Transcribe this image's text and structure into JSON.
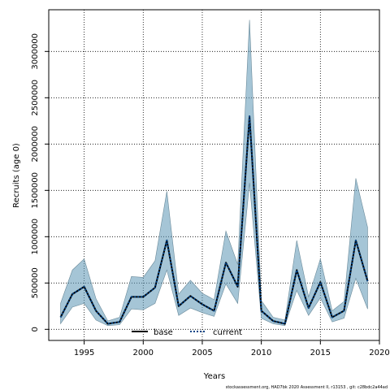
{
  "chart_data": {
    "type": "line",
    "title": "",
    "xlabel": "Years",
    "ylabel": "Recruits (age 0)",
    "xlim": [
      1992,
      2020
    ],
    "ylim": [
      -120000,
      3450000
    ],
    "grid": true,
    "x_ticks": [
      1995,
      2000,
      2005,
      2010,
      2015,
      2020
    ],
    "x_tick_labels": [
      "1995",
      "2000",
      "2005",
      "2010",
      "2015",
      "2020"
    ],
    "y_ticks": [
      0,
      500000,
      1000000,
      1500000,
      2000000,
      2500000,
      3000000
    ],
    "y_tick_labels": [
      "0",
      "500000",
      "1000000",
      "1500000",
      "2000000",
      "2500000",
      "3000000"
    ],
    "x": [
      1993,
      1994,
      1995,
      1996,
      1997,
      1998,
      1999,
      2000,
      2001,
      2002,
      2003,
      2004,
      2005,
      2006,
      2007,
      2008,
      2009,
      2010,
      2011,
      2012,
      2013,
      2014,
      2015,
      2016,
      2017,
      2018,
      2019
    ],
    "series": [
      {
        "name": "base",
        "style": "solid",
        "color": "#000000",
        "values": [
          130000,
          380000,
          460000,
          200000,
          60000,
          80000,
          350000,
          350000,
          450000,
          960000,
          250000,
          360000,
          270000,
          200000,
          720000,
          460000,
          2300000,
          200000,
          90000,
          60000,
          640000,
          230000,
          510000,
          130000,
          200000,
          960000,
          520000
        ]
      },
      {
        "name": "current",
        "style": "dotted",
        "color": "#004488",
        "values": [
          130000,
          380000,
          460000,
          200000,
          60000,
          80000,
          350000,
          350000,
          450000,
          960000,
          250000,
          360000,
          270000,
          200000,
          720000,
          460000,
          2300000,
          200000,
          90000,
          60000,
          640000,
          230000,
          510000,
          130000,
          200000,
          960000,
          520000
        ]
      }
    ],
    "band": {
      "color": "#5b95b5",
      "lower": [
        60000,
        240000,
        280000,
        100000,
        40000,
        50000,
        220000,
        210000,
        280000,
        640000,
        150000,
        230000,
        180000,
        140000,
        490000,
        280000,
        1580000,
        120000,
        60000,
        40000,
        420000,
        150000,
        340000,
        80000,
        120000,
        550000,
        220000
      ],
      "upper": [
        280000,
        640000,
        760000,
        330000,
        90000,
        130000,
        570000,
        560000,
        740000,
        1490000,
        380000,
        530000,
        390000,
        320000,
        1060000,
        700000,
        3340000,
        310000,
        130000,
        100000,
        960000,
        350000,
        760000,
        200000,
        300000,
        1630000,
        1100000
      ]
    },
    "legend": {
      "placement": "bottom-center",
      "entries": [
        "base",
        "current"
      ]
    },
    "footnote": "stockassessment.org, HAD7bk 2020 Assessment II, r13153 , git: c28bdc2a44ad"
  }
}
